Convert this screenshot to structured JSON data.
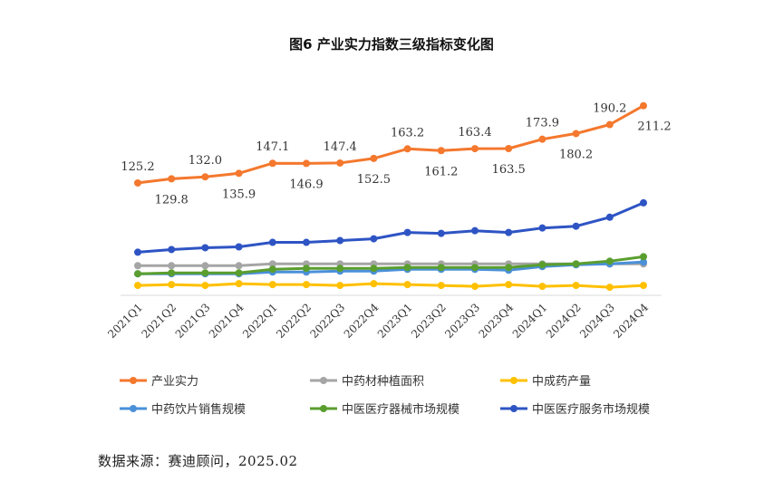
{
  "chart_data": {
    "type": "line",
    "title": "图6 产业实力指数三级指标变化图",
    "categories": [
      "2021Q1",
      "2021Q2",
      "2021Q3",
      "2021Q4",
      "2022Q1",
      "2022Q2",
      "2022Q3",
      "2022Q4",
      "2023Q1",
      "2023Q2",
      "2023Q3",
      "2023Q4",
      "2024Q1",
      "2024Q2",
      "2024Q3",
      "2024Q4"
    ],
    "ylim": [
      0,
      220
    ],
    "grid": false,
    "legend_placement": "bottom",
    "series": [
      {
        "name": "产业实力",
        "color": "#F4782D",
        "labeled": true,
        "values": [
          125.2,
          129.8,
          132.0,
          135.9,
          147.1,
          146.9,
          147.4,
          152.5,
          163.2,
          161.2,
          163.4,
          163.5,
          173.9,
          180.2,
          190.2,
          211.2
        ]
      },
      {
        "name": "中药材种植面积",
        "color": "#A5A5A5",
        "labeled": false,
        "values": [
          33,
          33,
          33,
          33,
          35,
          35,
          35,
          35,
          35,
          35,
          35,
          35,
          35,
          35,
          35,
          35
        ]
      },
      {
        "name": "中成药产量",
        "color": "#FFC000",
        "labeled": false,
        "values": [
          11,
          12,
          11,
          13,
          12,
          12,
          11,
          13,
          12,
          11,
          10,
          12,
          10,
          11,
          9,
          11
        ]
      },
      {
        "name": "中药饮片销售规模",
        "color": "#4A90D9",
        "labeled": false,
        "values": [
          24,
          24,
          24,
          24,
          26,
          26,
          27,
          27,
          29,
          29,
          29,
          28,
          32,
          34,
          35,
          37
        ]
      },
      {
        "name": "中医医疗器械市场规模",
        "color": "#5A9E2F",
        "labeled": false,
        "values": [
          24,
          25,
          25,
          25,
          29,
          30,
          30,
          30,
          31,
          31,
          31,
          31,
          34,
          35,
          38,
          43
        ]
      },
      {
        "name": "中医医疗服务市场规模",
        "color": "#2E54C4",
        "labeled": false,
        "values": [
          48,
          51,
          53,
          54,
          59,
          59,
          61,
          63,
          70,
          69,
          72,
          70,
          75,
          77,
          87,
          103
        ]
      }
    ]
  },
  "source": "数据来源：赛迪顾问，2025.02"
}
